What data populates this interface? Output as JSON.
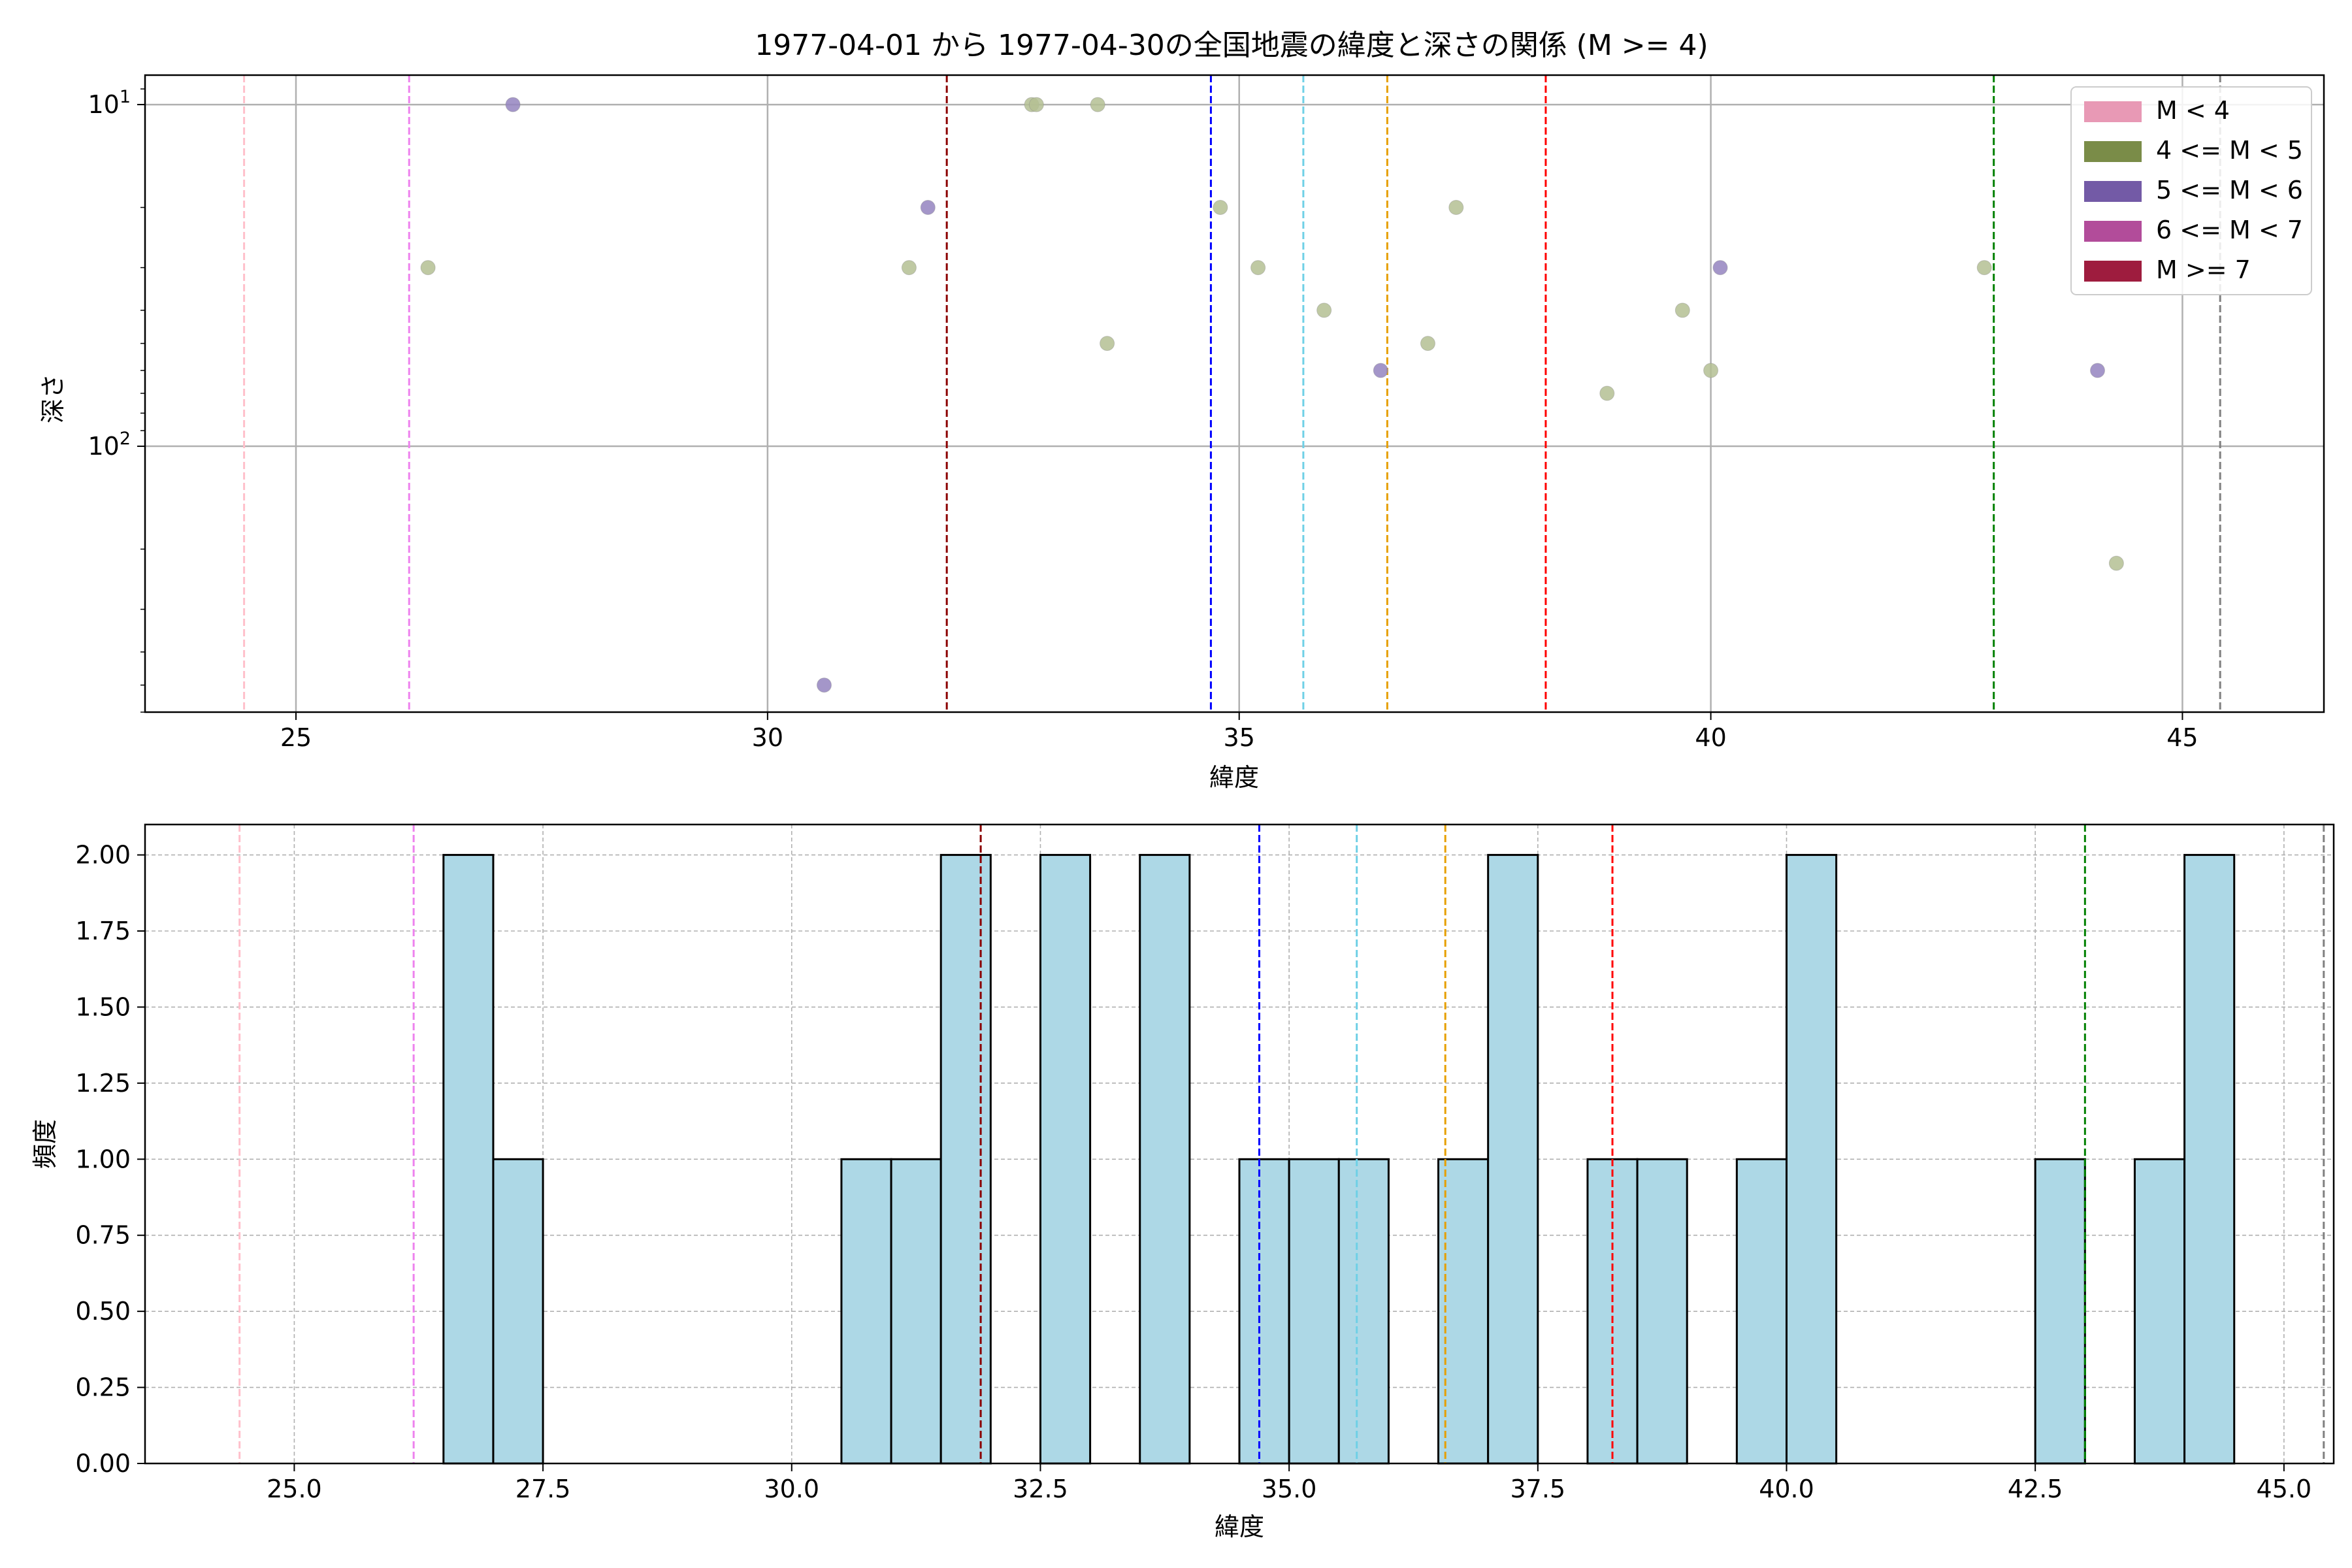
{
  "chart_data": [
    {
      "type": "scatter",
      "title": "1977-04-01 から 1977-04-30の全国地震の緯度と深さの関係 (M >= 4)",
      "xlabel": "緯度",
      "ylabel": "深さ",
      "xlim": [
        23.4,
        46.5
      ],
      "ylim": [
        8.2,
        600
      ],
      "yscale": "log",
      "y_inverted": true,
      "grid": true,
      "xticks": [
        "25",
        "30",
        "35",
        "40",
        "45"
      ],
      "yticks": [
        {
          "base": "10",
          "exp": "1",
          "value": 10
        },
        {
          "base": "10",
          "exp": "2",
          "value": 100
        }
      ],
      "points": [
        {
          "x": 26.4,
          "y": 30,
          "cls": "4-5"
        },
        {
          "x": 27.3,
          "y": 10,
          "cls": "5-6"
        },
        {
          "x": 30.6,
          "y": 500,
          "cls": "5-6"
        },
        {
          "x": 31.5,
          "y": 30,
          "cls": "4-5"
        },
        {
          "x": 31.7,
          "y": 20,
          "cls": "5-6"
        },
        {
          "x": 32.8,
          "y": 10,
          "cls": "4-5"
        },
        {
          "x": 32.85,
          "y": 10,
          "cls": "4-5"
        },
        {
          "x": 33.5,
          "y": 10,
          "cls": "4-5"
        },
        {
          "x": 33.6,
          "y": 50,
          "cls": "4-5"
        },
        {
          "x": 34.8,
          "y": 20,
          "cls": "4-5"
        },
        {
          "x": 35.2,
          "y": 30,
          "cls": "4-5"
        },
        {
          "x": 35.9,
          "y": 40,
          "cls": "4-5"
        },
        {
          "x": 36.5,
          "y": 60,
          "cls": "5-6"
        },
        {
          "x": 37.0,
          "y": 50,
          "cls": "4-5"
        },
        {
          "x": 37.3,
          "y": 20,
          "cls": "4-5"
        },
        {
          "x": 38.9,
          "y": 70,
          "cls": "4-5"
        },
        {
          "x": 39.7,
          "y": 40,
          "cls": "4-5"
        },
        {
          "x": 40.0,
          "y": 60,
          "cls": "4-5"
        },
        {
          "x": 40.1,
          "y": 30,
          "cls": "5-6"
        },
        {
          "x": 42.9,
          "y": 30,
          "cls": "4-5"
        },
        {
          "x": 44.1,
          "y": 60,
          "cls": "5-6"
        },
        {
          "x": 44.3,
          "y": 220,
          "cls": "4-5"
        }
      ]
    },
    {
      "type": "bar",
      "title": "",
      "xlabel": "緯度",
      "ylabel": "頻度",
      "xlim": [
        23.5,
        45.5
      ],
      "ylim": [
        0,
        2.1
      ],
      "grid": true,
      "xticks": [
        "25.0",
        "27.5",
        "30.0",
        "32.5",
        "35.0",
        "37.5",
        "40.0",
        "42.5",
        "45.0"
      ],
      "yticks": [
        "0.00",
        "0.25",
        "0.50",
        "0.75",
        "1.00",
        "1.25",
        "1.50",
        "1.75",
        "2.00"
      ],
      "bin_width": 0.5,
      "bins": [
        {
          "x0": 26.5,
          "count": 2
        },
        {
          "x0": 27.0,
          "count": 1
        },
        {
          "x0": 30.5,
          "count": 1
        },
        {
          "x0": 31.0,
          "count": 1
        },
        {
          "x0": 31.5,
          "count": 2
        },
        {
          "x0": 32.5,
          "count": 2
        },
        {
          "x0": 33.5,
          "count": 2
        },
        {
          "x0": 34.5,
          "count": 1
        },
        {
          "x0": 35.0,
          "count": 1
        },
        {
          "x0": 35.5,
          "count": 1
        },
        {
          "x0": 36.5,
          "count": 1
        },
        {
          "x0": 37.0,
          "count": 2
        },
        {
          "x0": 38.0,
          "count": 1
        },
        {
          "x0": 38.5,
          "count": 1
        },
        {
          "x0": 39.5,
          "count": 1
        },
        {
          "x0": 40.0,
          "count": 2
        },
        {
          "x0": 42.5,
          "count": 1
        },
        {
          "x0": 43.5,
          "count": 1
        },
        {
          "x0": 44.0,
          "count": 2
        }
      ]
    }
  ],
  "reference_lines": [
    {
      "x": 24.45,
      "color": "#ffc0cb"
    },
    {
      "x": 26.2,
      "color": "#ee82ee"
    },
    {
      "x": 31.9,
      "color": "#8b0000"
    },
    {
      "x": 34.7,
      "color": "#0000ff"
    },
    {
      "x": 35.68,
      "color": "#6fd0e6"
    },
    {
      "x": 36.57,
      "color": "#e69f00"
    },
    {
      "x": 38.25,
      "color": "#ff0000"
    },
    {
      "x": 43.0,
      "color": "#008000"
    },
    {
      "x": 45.4,
      "color": "#808080"
    }
  ],
  "legend": {
    "placement": "top-right",
    "items": [
      {
        "label": "M < 4",
        "color": "#e899b5"
      },
      {
        "label": "4 <= M < 5",
        "color": "#7a8c48"
      },
      {
        "label": "5 <= M < 6",
        "color": "#735aa6"
      },
      {
        "label": "6 <= M < 7",
        "color": "#b24c9a"
      },
      {
        "label": "M >= 7",
        "color": "#9e1c3e"
      }
    ]
  },
  "colors": {
    "4-5": "#b4bf93",
    "5-6": "#9484c0",
    "hist_fill": "#add8e6"
  }
}
